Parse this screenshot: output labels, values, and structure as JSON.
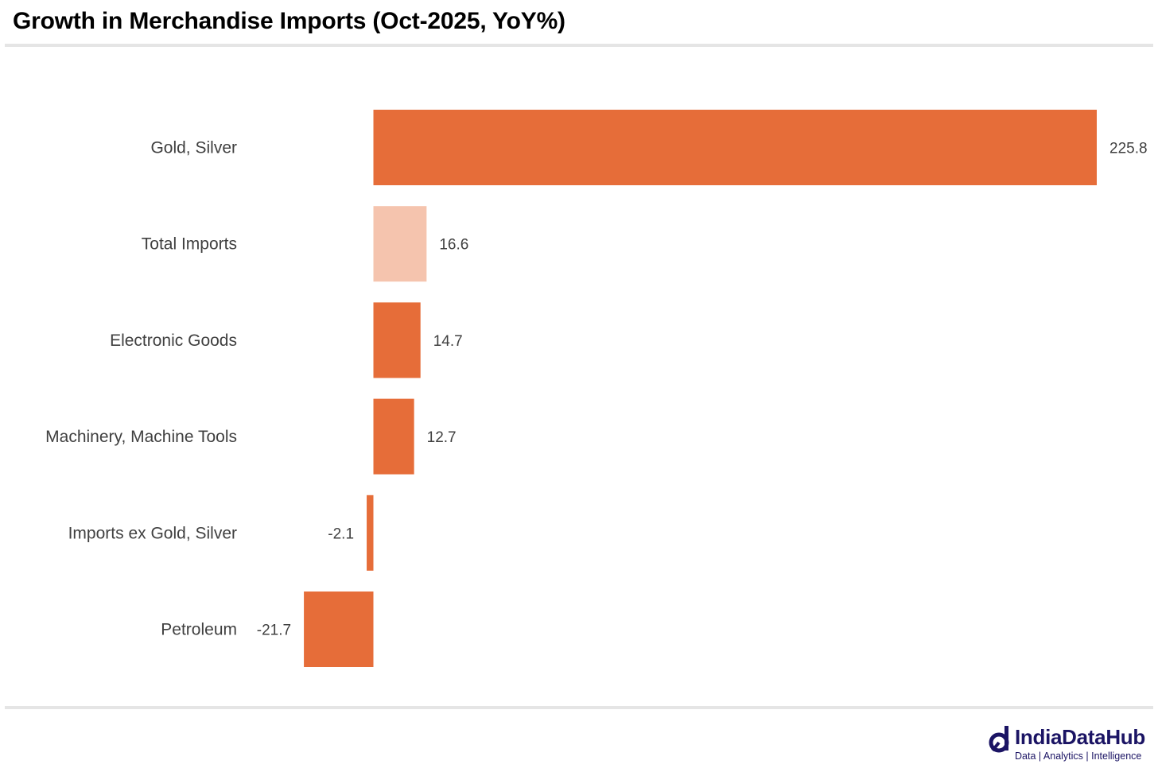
{
  "header": {
    "title": "Growth in Merchandise Imports (Oct-2025, YoY%)"
  },
  "brand": {
    "name": "IndiaDataHub",
    "tagline": "Data | Analytics | Intelligence",
    "icon": "india-data-hub-logo-icon",
    "color": "#1b1464"
  },
  "colors": {
    "bar": "#e66d39",
    "bar_highlight": "#f5c4ae",
    "label": "#404040",
    "value_label": "#404040"
  },
  "chart_data": {
    "type": "bar",
    "orientation": "horizontal",
    "title": "Growth in Merchandise Imports (Oct-2025, YoY%)",
    "xlabel": "",
    "ylabel": "",
    "grid": false,
    "xlim": [
      -21.7,
      225.8
    ],
    "categories": [
      "Gold, Silver",
      "Total Imports",
      "Electronic Goods",
      "Machinery, Machine Tools",
      "Imports ex Gold, Silver",
      "Petroleum"
    ],
    "values": [
      225.8,
      16.6,
      14.7,
      12.7,
      -2.1,
      -21.7
    ],
    "value_labels": [
      "225.8",
      "16.6",
      "14.7",
      "12.7",
      "-2.1",
      "-21.7"
    ],
    "highlight": [
      false,
      true,
      false,
      false,
      false,
      false
    ]
  }
}
